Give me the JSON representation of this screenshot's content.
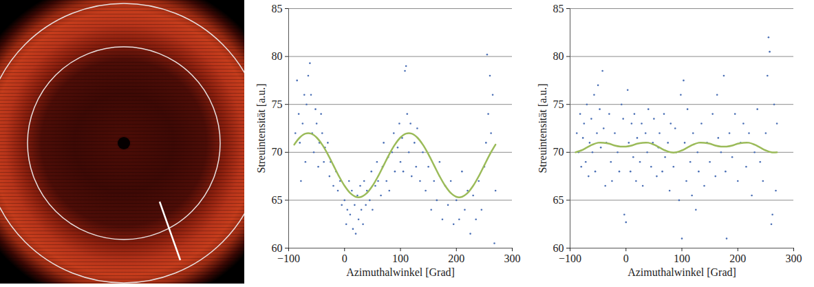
{
  "chart_data": [
    {
      "type": "scatter",
      "xlabel": "Azimuthalwinkel [Grad]",
      "ylabel": "Streuintensität [a.u.]",
      "xlim": [
        -100,
        300
      ],
      "xticks": [
        -100,
        0,
        100,
        200,
        300
      ],
      "ylim": [
        60,
        85
      ],
      "yticks": [
        60,
        65,
        70,
        75,
        80,
        85
      ],
      "grid": true,
      "series": [
        {
          "type": "scatter",
          "marker": "dot",
          "color": "#4a6fb5",
          "x": [
            -88,
            -85,
            -82,
            -80,
            -78,
            -75,
            -72,
            -70,
            -68,
            -65,
            -62,
            -60,
            -58,
            -55,
            -52,
            -50,
            -47,
            -45,
            -42,
            -40,
            -37,
            -35,
            -30,
            -27,
            -25,
            -20,
            -15,
            -12,
            -8,
            -5,
            0,
            3,
            5,
            8,
            10,
            13,
            15,
            18,
            20,
            23,
            25,
            28,
            30,
            33,
            35,
            38,
            40,
            45,
            48,
            50,
            55,
            58,
            60,
            65,
            68,
            70,
            75,
            78,
            80,
            85,
            88,
            90,
            95,
            98,
            100,
            103,
            105,
            108,
            110,
            112,
            115,
            118,
            120,
            125,
            128,
            130,
            135,
            140,
            145,
            150,
            155,
            160,
            165,
            170,
            175,
            180,
            185,
            190,
            195,
            200,
            205,
            210,
            215,
            220,
            225,
            230,
            235,
            240,
            245,
            250,
            253,
            255,
            257,
            260,
            262,
            265,
            268,
            270
          ],
          "values": [
            72,
            77.5,
            74,
            71,
            67,
            73,
            76,
            69,
            75,
            78,
            79.3,
            76,
            72,
            70,
            74.5,
            73,
            68.5,
            71,
            74,
            72,
            69,
            70.5,
            71,
            67.5,
            69,
            66.5,
            68,
            66,
            67,
            64.5,
            65,
            62.5,
            64,
            67,
            63.5,
            66,
            62,
            64.5,
            61.5,
            65.5,
            63,
            66.5,
            64,
            62.5,
            67,
            64.5,
            66,
            65,
            68,
            64,
            66.5,
            69,
            67,
            65.5,
            68.5,
            71,
            67,
            69.5,
            66,
            70,
            72,
            68,
            70.5,
            73,
            69,
            71.5,
            68,
            78.5,
            79,
            74,
            70,
            73,
            67.5,
            71,
            68.5,
            72.5,
            67,
            70,
            66,
            68.5,
            64,
            67,
            65,
            69,
            63,
            66.5,
            64.5,
            67,
            62.5,
            65,
            63,
            68,
            64,
            66,
            61.5,
            65.5,
            63,
            67,
            64,
            68.5,
            71,
            80.2,
            74,
            78,
            72,
            76,
            60.5,
            66
          ]
        },
        {
          "type": "line",
          "line_style": "solid",
          "color": "#9bbb59",
          "x": [
            -90,
            -80,
            -70,
            -60,
            -50,
            -40,
            -30,
            -20,
            -10,
            0,
            10,
            20,
            30,
            40,
            50,
            60,
            70,
            80,
            90,
            100,
            110,
            120,
            130,
            140,
            150,
            160,
            170,
            180,
            190,
            200,
            210,
            220,
            230,
            240,
            250,
            260,
            270
          ],
          "values": [
            70.8,
            71.55,
            71.95,
            71.95,
            71.55,
            70.8,
            69.8,
            68.65,
            67.5,
            66.5,
            65.75,
            65.35,
            65.35,
            65.75,
            66.5,
            67.5,
            68.65,
            69.8,
            70.8,
            71.55,
            71.95,
            71.95,
            71.55,
            70.8,
            69.8,
            68.65,
            67.5,
            66.5,
            65.75,
            65.35,
            65.35,
            65.75,
            66.5,
            67.5,
            68.65,
            69.8,
            70.8
          ]
        }
      ]
    },
    {
      "type": "scatter",
      "xlabel": "Azimuthalwinkel [Grad]",
      "ylabel": "Streuintensität [a.u.]",
      "xlim": [
        -100,
        300
      ],
      "xticks": [
        -100,
        0,
        100,
        200,
        300
      ],
      "ylim": [
        60,
        85
      ],
      "yticks": [
        60,
        65,
        70,
        75,
        80,
        85
      ],
      "grid": true,
      "series": [
        {
          "type": "scatter",
          "marker": "dot",
          "color": "#4a6fb5",
          "x": [
            -88,
            -85,
            -82,
            -80,
            -77,
            -75,
            -72,
            -70,
            -67,
            -65,
            -62,
            -60,
            -57,
            -55,
            -52,
            -50,
            -47,
            -45,
            -42,
            -40,
            -37,
            -35,
            -30,
            -27,
            -25,
            -20,
            -15,
            -12,
            -8,
            -5,
            -3,
            0,
            3,
            5,
            8,
            10,
            13,
            15,
            18,
            20,
            25,
            28,
            30,
            35,
            38,
            40,
            45,
            48,
            50,
            55,
            58,
            60,
            65,
            68,
            70,
            75,
            78,
            80,
            85,
            88,
            90,
            95,
            98,
            100,
            103,
            105,
            108,
            110,
            115,
            118,
            120,
            125,
            128,
            130,
            135,
            140,
            145,
            150,
            155,
            160,
            163,
            165,
            170,
            175,
            178,
            180,
            185,
            190,
            195,
            200,
            205,
            210,
            215,
            220,
            225,
            230,
            235,
            240,
            245,
            250,
            253,
            255,
            257,
            260,
            262,
            265,
            268,
            270
          ],
          "values": [
            72,
            70,
            74,
            68.5,
            71.5,
            73,
            69,
            75,
            67.5,
            71,
            73.5,
            70,
            76,
            68,
            72,
            77,
            74.5,
            70.5,
            78.5,
            72.5,
            66.5,
            71,
            74,
            69,
            67,
            72,
            70,
            68,
            75,
            73.5,
            63.5,
            62.7,
            76.5,
            71,
            68,
            73,
            69.5,
            74,
            67,
            71.5,
            69,
            73,
            66.5,
            72,
            70,
            74.5,
            68.5,
            71,
            73.5,
            67.5,
            70.5,
            72,
            68,
            74,
            69.5,
            71,
            66,
            73,
            68.5,
            72.5,
            70,
            65,
            76,
            61,
            77.5,
            71,
            67,
            74.5,
            69,
            65.5,
            72,
            64,
            70,
            68,
            73,
            66.5,
            71,
            69,
            74,
            67.5,
            76,
            71.5,
            70,
            78,
            68,
            61,
            72,
            69.5,
            74,
            67,
            71,
            73,
            68.5,
            72,
            65.5,
            70,
            74.5,
            69,
            67,
            72,
            78,
            82,
            80.5,
            62.5,
            63.5,
            75,
            66,
            73
          ]
        },
        {
          "type": "line",
          "line_style": "solid",
          "color": "#9bbb59",
          "x": [
            -90,
            -80,
            -70,
            -60,
            -50,
            -40,
            -30,
            -20,
            -10,
            0,
            10,
            20,
            30,
            40,
            50,
            60,
            70,
            80,
            90,
            100,
            110,
            120,
            130,
            140,
            150,
            160,
            170,
            180,
            190,
            200,
            210,
            220,
            230,
            240,
            250,
            260,
            270
          ],
          "values": [
            70.0,
            70.2,
            70.5,
            70.8,
            71.0,
            71.0,
            70.9,
            70.7,
            70.6,
            70.6,
            70.7,
            70.9,
            71.0,
            71.0,
            70.8,
            70.5,
            70.2,
            70.0,
            70.0,
            70.2,
            70.5,
            70.8,
            71.0,
            71.0,
            70.9,
            70.7,
            70.6,
            70.6,
            70.7,
            70.9,
            71.0,
            71.0,
            70.8,
            70.5,
            70.2,
            70.0,
            70.0
          ]
        }
      ]
    }
  ]
}
